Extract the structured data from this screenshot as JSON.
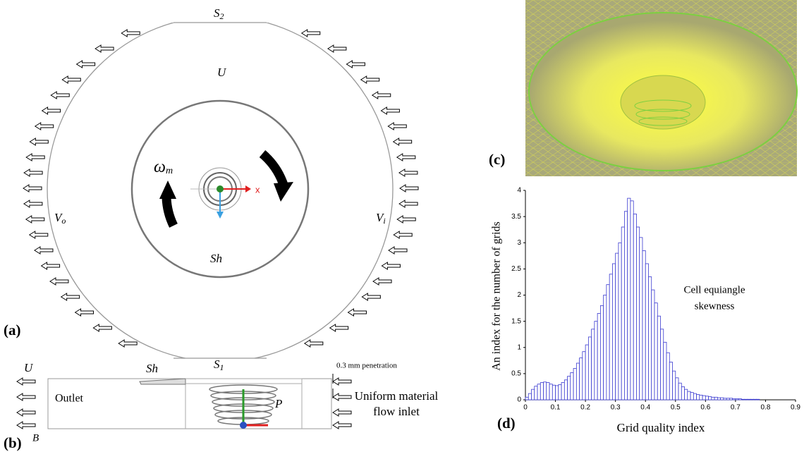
{
  "panel_a": {
    "label": "(a)",
    "s2": {
      "main": "S",
      "sub": "2"
    },
    "s1": {
      "main": "S",
      "sub": "1"
    },
    "u": "U",
    "omega": {
      "main": "ω",
      "sub": "m"
    },
    "vo": {
      "main": "V",
      "sub": "o"
    },
    "vi": {
      "main": "V",
      "sub": "i"
    },
    "sh": "Sh",
    "axis_x": "x"
  },
  "panel_b": {
    "label": "(b)",
    "u": "U",
    "b": "B",
    "sh": "Sh",
    "outlet": "Outlet",
    "p": "P",
    "penetration": "0.3 mm penetration",
    "inlet_1": "Uniform material",
    "inlet_2": "flow inlet"
  },
  "panel_c": {
    "label": "(c)"
  },
  "panel_d": {
    "label": "(d)"
  },
  "chart_data": {
    "type": "histogram",
    "xlabel": "Grid quality index",
    "ylabel": "An index for the number of grids",
    "annotation": [
      "Cell equiangle",
      "skewness"
    ],
    "color": "#3a3ad0",
    "bins": [
      0,
      0.01,
      0.02,
      0.03,
      0.04,
      0.05,
      0.06,
      0.07,
      0.08,
      0.09,
      0.1,
      0.11,
      0.12,
      0.13,
      0.14,
      0.15,
      0.16,
      0.17,
      0.18,
      0.19,
      0.2,
      0.21,
      0.22,
      0.23,
      0.24,
      0.25,
      0.26,
      0.27,
      0.28,
      0.29,
      0.3,
      0.31,
      0.32,
      0.33,
      0.34,
      0.35,
      0.36,
      0.37,
      0.38,
      0.39,
      0.4,
      0.41,
      0.42,
      0.43,
      0.44,
      0.45,
      0.46,
      0.47,
      0.48,
      0.49,
      0.5,
      0.51,
      0.52,
      0.53,
      0.54,
      0.55,
      0.56,
      0.57,
      0.58,
      0.59,
      0.6,
      0.61,
      0.62,
      0.63,
      0.64,
      0.65,
      0.66,
      0.67,
      0.68,
      0.69,
      0.7,
      0.71,
      0.72,
      0.73,
      0.74,
      0.75,
      0.76,
      0.77,
      0.78,
      0.79,
      0.8
    ],
    "values": [
      0.05,
      0.12,
      0.2,
      0.26,
      0.3,
      0.33,
      0.34,
      0.33,
      0.3,
      0.28,
      0.27,
      0.29,
      0.33,
      0.38,
      0.45,
      0.52,
      0.6,
      0.7,
      0.8,
      0.92,
      1.05,
      1.2,
      1.35,
      1.5,
      1.65,
      1.8,
      2.0,
      2.2,
      2.4,
      2.6,
      2.8,
      3.0,
      3.3,
      3.6,
      3.85,
      3.8,
      3.55,
      3.3,
      3.1,
      2.85,
      2.6,
      2.35,
      2.1,
      1.85,
      1.6,
      1.35,
      1.1,
      0.9,
      0.72,
      0.55,
      0.42,
      0.32,
      0.25,
      0.2,
      0.16,
      0.14,
      0.12,
      0.1,
      0.09,
      0.08,
      0.07,
      0.06,
      0.05,
      0.05,
      0.04,
      0.04,
      0.03,
      0.03,
      0.03,
      0.02,
      0.02,
      0.02,
      0.01,
      0.01,
      0.01,
      0.01,
      0.01,
      0.01,
      0,
      0
    ],
    "xlim": [
      0,
      0.9
    ],
    "xticks": [
      0,
      0.1,
      0.2,
      0.3,
      0.4,
      0.5,
      0.6,
      0.7,
      0.8,
      0.9
    ],
    "ylim": [
      0,
      4
    ],
    "yticks": [
      0,
      0.5,
      1,
      1.5,
      2,
      2.5,
      3,
      3.5,
      4
    ]
  }
}
